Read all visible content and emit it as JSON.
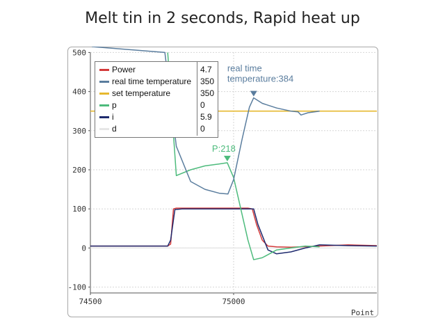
{
  "title": "Melt tin in 2 seconds,  Rapid heat up",
  "chart_data": {
    "type": "line",
    "xlabel": "Point",
    "ylabel": "",
    "xlim": [
      74500,
      75500
    ],
    "ylim": [
      -115,
      515
    ],
    "x_ticks": [
      74500,
      75000
    ],
    "y_ticks": [
      500,
      400,
      300,
      200,
      100,
      0,
      -100
    ],
    "grid": true,
    "legend_position": "top-left",
    "series": [
      {
        "name": "Power",
        "color": "#d43a3a",
        "legend_value": "4.7",
        "x": [
          74500,
          74770,
          74780,
          74790,
          74800,
          74850,
          74900,
          74950,
          75000,
          75050,
          75065,
          75080,
          75100,
          75120,
          75150,
          75200,
          75300,
          75400,
          75500
        ],
        "y": [
          5,
          5,
          10,
          100,
          102,
          102,
          102,
          102,
          102,
          102,
          100,
          60,
          20,
          5,
          3,
          2,
          5,
          8,
          6
        ]
      },
      {
        "name": "real time temperature",
        "color": "#5a7d9e",
        "legend_value": "350",
        "x": [
          74505,
          74760,
          74780,
          74800,
          74850,
          74900,
          74950,
          74980,
          75000,
          75030,
          75055,
          75070,
          75100,
          75150,
          75200,
          75225,
          75235,
          75260,
          75300
        ],
        "y": [
          515,
          500,
          380,
          260,
          170,
          150,
          140,
          138,
          175,
          280,
          360,
          384,
          370,
          358,
          350,
          348,
          340,
          346,
          350
        ]
      },
      {
        "name": "set temperature",
        "color": "#e6b82e",
        "legend_value": "350",
        "x": [
          74500,
          75500
        ],
        "y": [
          350,
          350
        ]
      },
      {
        "name": "p",
        "color": "#4dbb7c",
        "legend_value": "0",
        "x": [
          74770,
          74800,
          74850,
          74900,
          74950,
          74978,
          75000,
          75050,
          75070,
          75100,
          75150,
          75200,
          75250,
          75300
        ],
        "y": [
          500,
          185,
          200,
          210,
          215,
          218,
          180,
          20,
          -30,
          -25,
          -5,
          0,
          5,
          3
        ]
      },
      {
        "name": "i",
        "color": "#1e2a6e",
        "legend_value": "5.9",
        "x": [
          74500,
          74770,
          74780,
          74795,
          74820,
          74900,
          75000,
          75070,
          75085,
          75120,
          75150,
          75200,
          75250,
          75300,
          75400,
          75500
        ],
        "y": [
          5,
          5,
          20,
          98,
          100,
          100,
          100,
          100,
          60,
          -5,
          -15,
          -10,
          0,
          8,
          6,
          5
        ]
      },
      {
        "name": "d",
        "color": "#e6e6e6",
        "legend_value": "0",
        "x": [
          74500,
          75500
        ],
        "y": [
          0,
          0
        ]
      }
    ],
    "annotations": [
      {
        "text": "real time temperature:384",
        "x": 75070,
        "y": 384,
        "color": "#5a7d9e"
      },
      {
        "text": "P:218",
        "x": 74978,
        "y": 218,
        "color": "#4dbb7c"
      }
    ]
  }
}
